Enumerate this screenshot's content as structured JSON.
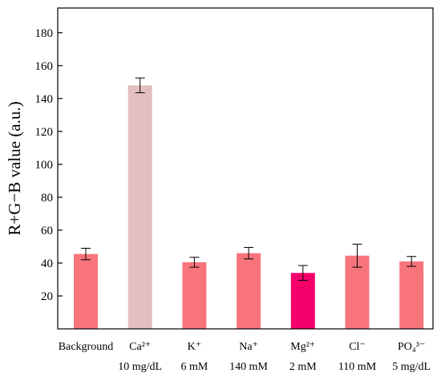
{
  "chart_data": {
    "type": "bar",
    "ylabel": "R+G−B value (a.u.)",
    "xlabel": "",
    "ylim": [
      0,
      195
    ],
    "yticks": [
      20,
      40,
      60,
      80,
      100,
      120,
      140,
      160,
      180
    ],
    "grid": false,
    "categories": [
      {
        "line1": "Background",
        "line2": ""
      },
      {
        "line1": "Ca²⁺",
        "line2": "10 mg/dL"
      },
      {
        "line1": "K⁺",
        "line2": "6 mM"
      },
      {
        "line1": "Na⁺",
        "line2": "140 mM"
      },
      {
        "line1": "Mg²⁺",
        "line2": "2 mM"
      },
      {
        "line1": "Cl⁻",
        "line2": "110 mM"
      },
      {
        "line1": "PO₄³⁻",
        "line2": "5 mg/dL"
      }
    ],
    "values": [
      45.5,
      148,
      40.5,
      46,
      34,
      44.5,
      41
    ],
    "errors": [
      3.5,
      4.5,
      3,
      3.5,
      4.5,
      7,
      3
    ],
    "colors": [
      "#F7747B",
      "#E3BFC2",
      "#F7747B",
      "#F7747B",
      "#F5006A",
      "#F7747B",
      "#F7747B"
    ]
  }
}
